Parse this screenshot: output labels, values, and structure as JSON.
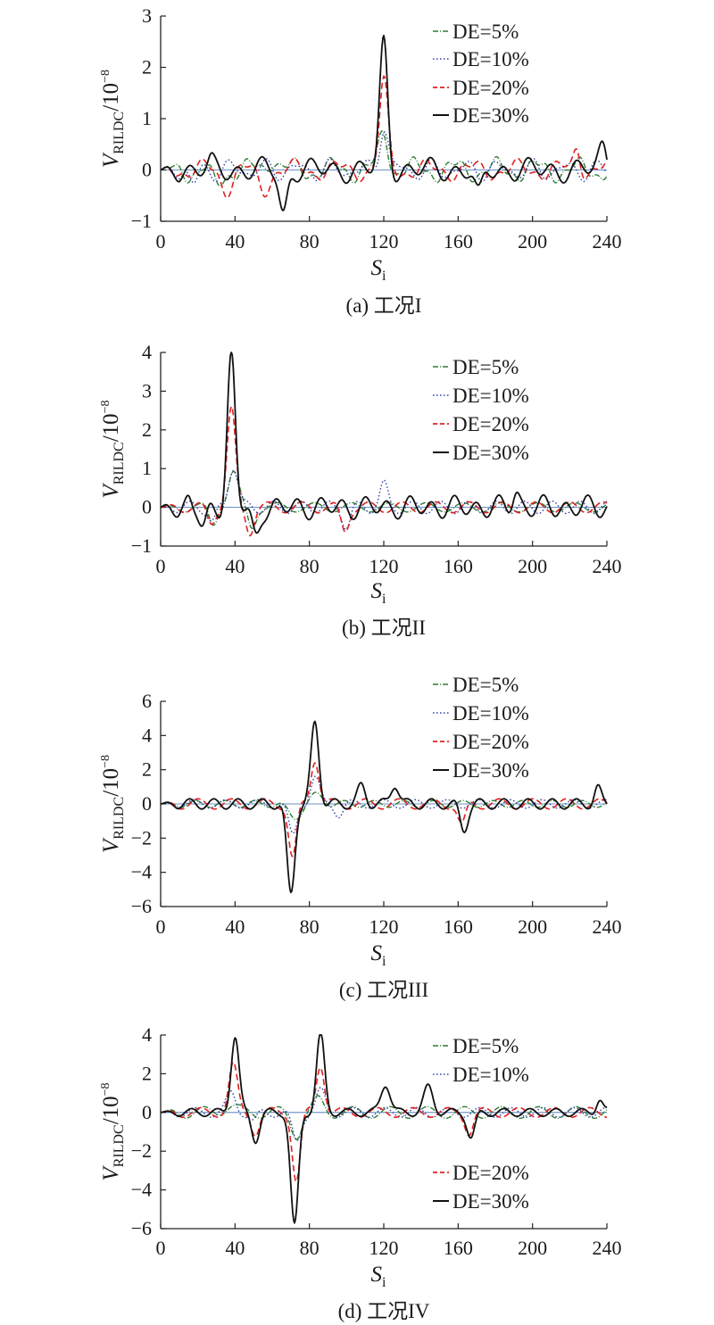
{
  "chart_data": [
    {
      "type": "line",
      "caption": "(a) 工况I",
      "ylabel": "V_RILDC/10^-8",
      "xlabel": "S_i",
      "xlim": [
        0,
        240
      ],
      "ylim": [
        -1,
        3
      ],
      "xticks": [
        0,
        40,
        80,
        120,
        160,
        200,
        240
      ],
      "yticks": [
        -1,
        0,
        1,
        2,
        3
      ],
      "grid": false,
      "legend": "top-right",
      "series": [
        {
          "name": "DE=5%",
          "color": "#2e7d32",
          "dash": "6,2,1,2",
          "width": 1.4,
          "peaks": [
            [
              120,
              0.72,
              3.5
            ],
            [
              60,
              0.25,
              4
            ],
            [
              30,
              -0.3,
              4
            ]
          ],
          "waves": [
            [
              0.18,
              22,
              0.3
            ],
            [
              0.08,
              9,
              1.1
            ]
          ]
        },
        {
          "name": "DE=10%",
          "color": "#2d3fa8",
          "dash": "1.5,2.5",
          "width": 1.4,
          "peaks": [
            [
              120,
              0.9,
              3.2
            ],
            [
              18,
              -0.3,
              3
            ]
          ],
          "waves": [
            [
              0.15,
              18,
              0.9
            ],
            [
              0.08,
              11,
              0.2
            ]
          ]
        },
        {
          "name": "DE=20%",
          "color": "#e02020",
          "dash": "7,4",
          "width": 1.6,
          "peaks": [
            [
              120,
              1.65,
              3.2
            ],
            [
              55,
              -0.4,
              4
            ],
            [
              35,
              -0.35,
              4
            ],
            [
              224,
              0.45,
              2.5
            ]
          ],
          "waves": [
            [
              0.15,
              24,
              1.6
            ],
            [
              0.08,
              10,
              0.4
            ]
          ]
        },
        {
          "name": "DE=30%",
          "color": "#111111",
          "dash": "",
          "width": 1.8,
          "peaks": [
            [
              120,
              2.45,
              3.0
            ],
            [
              66,
              -0.85,
              3.0
            ],
            [
              171,
              -0.55,
              3
            ],
            [
              238,
              0.45,
              3
            ],
            [
              27,
              0.1,
              2
            ]
          ],
          "waves": [
            [
              0.16,
              13,
              0.4
            ],
            [
              0.1,
              29,
              2.1
            ]
          ]
        }
      ]
    },
    {
      "type": "line",
      "caption": "(b) 工况II",
      "ylabel": "V_RILDC/10^-8",
      "xlabel": "S_i",
      "xlim": [
        0,
        240
      ],
      "ylim": [
        -1,
        4
      ],
      "xticks": [
        0,
        40,
        80,
        120,
        160,
        200,
        240
      ],
      "yticks": [
        -1,
        0,
        1,
        2,
        3,
        4
      ],
      "grid": false,
      "legend": "top-right",
      "series": [
        {
          "name": "DE=5%",
          "color": "#2e7d32",
          "dash": "6,2,1,2",
          "width": 1.4,
          "peaks": [
            [
              39,
              0.88,
              4
            ],
            [
              28,
              -0.45,
              3
            ],
            [
              49,
              -0.5,
              3
            ]
          ],
          "waves": [
            [
              0.12,
              20,
              0.7
            ]
          ]
        },
        {
          "name": "DE=10%",
          "color": "#2d3fa8",
          "dash": "1.5,2.5",
          "width": 1.4,
          "peaks": [
            [
              39,
              1.1,
              3.5
            ],
            [
              120,
              0.55,
              3
            ],
            [
              100,
              -0.45,
              3
            ],
            [
              28,
              -0.4,
              3
            ]
          ],
          "waves": [
            [
              0.16,
              15,
              1.3
            ]
          ]
        },
        {
          "name": "DE=20%",
          "color": "#e02020",
          "dash": "7,4",
          "width": 1.6,
          "peaks": [
            [
              38,
              2.5,
              3.2
            ],
            [
              48,
              -0.6,
              3
            ],
            [
              99,
              -0.6,
              3
            ],
            [
              27,
              -0.4,
              3
            ]
          ],
          "waves": [
            [
              0.14,
              18,
              0.2
            ]
          ]
        },
        {
          "name": "DE=30%",
          "color": "#111111",
          "dash": "",
          "width": 1.8,
          "peaks": [
            [
              38,
              3.85,
              3.0
            ],
            [
              51,
              -0.8,
              3
            ],
            [
              23,
              -0.55,
              3
            ],
            [
              191,
              0.4,
              2.5
            ],
            [
              15,
              0.15,
              2
            ]
          ],
          "waves": [
            [
              0.22,
              12,
              0.6
            ],
            [
              0.1,
              23,
              1.9
            ]
          ]
        }
      ]
    },
    {
      "type": "line",
      "caption": "(c) 工况III",
      "ylabel": "V_RILDC/10^-8",
      "xlabel": "S_i",
      "xlim": [
        0,
        240
      ],
      "ylim": [
        -6,
        6
      ],
      "xticks": [
        0,
        40,
        80,
        120,
        160,
        200,
        240
      ],
      "yticks": [
        -6,
        -4,
        -2,
        0,
        2,
        4,
        6
      ],
      "grid": false,
      "legend": "top-right",
      "series": [
        {
          "name": "DE=5%",
          "color": "#2e7d32",
          "dash": "6,2,1,2",
          "width": 1.4,
          "peaks": [
            [
              72,
              -0.8,
              5
            ],
            [
              84,
              0.5,
              5
            ]
          ],
          "waves": [
            [
              0.2,
              16,
              0.5
            ]
          ]
        },
        {
          "name": "DE=10%",
          "color": "#2d3fa8",
          "dash": "1.5,2.5",
          "width": 1.4,
          "peaks": [
            [
              71,
              -1.9,
              3.2
            ],
            [
              83,
              1.5,
              3.4
            ],
            [
              96,
              -0.6,
              3
            ]
          ],
          "waves": [
            [
              0.25,
              17,
              1.2
            ]
          ]
        },
        {
          "name": "DE=20%",
          "color": "#e02020",
          "dash": "7,4",
          "width": 1.6,
          "peaks": [
            [
              71,
              -3.2,
              3.0
            ],
            [
              83,
              2.7,
              3.1
            ],
            [
              162,
              -1.3,
              3
            ]
          ],
          "waves": [
            [
              0.3,
              18,
              0.8
            ]
          ]
        },
        {
          "name": "DE=30%",
          "color": "#111111",
          "dash": "",
          "width": 1.8,
          "peaks": [
            [
              70,
              -5.3,
              3.0
            ],
            [
              83,
              4.7,
              3.0
            ],
            [
              163,
              -1.5,
              3
            ],
            [
              235,
              0.9,
              2.5
            ],
            [
              108,
              1.0,
              3
            ],
            [
              126,
              1.2,
              3
            ]
          ],
          "waves": [
            [
              0.3,
              13,
              0.3
            ]
          ]
        }
      ]
    },
    {
      "type": "line",
      "caption": "(d) 工况IV",
      "ylabel": "V_RILDC/10^-8",
      "xlabel": "S_i",
      "xlim": [
        0,
        240
      ],
      "ylim": [
        -6,
        4
      ],
      "xticks": [
        0,
        40,
        80,
        120,
        160,
        200,
        240
      ],
      "yticks": [
        -6,
        -4,
        -2,
        0,
        2,
        4
      ],
      "grid": false,
      "legend": "top-right",
      "series": [
        {
          "name": "DE=5%",
          "color": "#2e7d32",
          "dash": "6,2,1,2",
          "width": 1.4,
          "peaks": [
            [
              37,
              0.35,
              5
            ],
            [
              73,
              -1.1,
              4
            ],
            [
              85,
              0.6,
              4
            ]
          ],
          "waves": [
            [
              0.3,
              20,
              0.5
            ]
          ]
        },
        {
          "name": "DE=10%",
          "color": "#2d3fa8",
          "dash": "1.5,2.5",
          "width": 1.4,
          "peaks": [
            [
              38,
              0.95,
              3.5
            ],
            [
              73,
              -1.5,
              3.5
            ],
            [
              86,
              1.05,
              3.5
            ],
            [
              50,
              -0.5,
              3
            ]
          ],
          "waves": [
            [
              0.25,
              17,
              1.0
            ]
          ]
        },
        {
          "name": "DE=20%",
          "color": "#e02020",
          "dash": "7,4",
          "width": 1.6,
          "peaks": [
            [
              39,
              2.4,
              3.2
            ],
            [
              73,
              -3.5,
              3.0
            ],
            [
              86,
              2.5,
              3.1
            ],
            [
              51,
              -1.0,
              3
            ],
            [
              166,
              -1.0,
              3
            ]
          ],
          "waves": [
            [
              0.25,
              19,
              0.7
            ]
          ]
        },
        {
          "name": "DE=30%",
          "color": "#111111",
          "dash": "",
          "width": 1.8,
          "peaks": [
            [
              40,
              3.95,
              3.0
            ],
            [
              72,
              -5.9,
              3.0
            ],
            [
              86,
              4.0,
              3.0
            ],
            [
              51,
              -1.4,
              3
            ],
            [
              121,
              1.5,
              3.5
            ],
            [
              144,
              1.3,
              3.5
            ],
            [
              167,
              -1.3,
              3
            ],
            [
              236,
              0.7,
              2.5
            ]
          ],
          "waves": [
            [
              0.2,
              14,
              0.4
            ]
          ]
        }
      ]
    }
  ]
}
